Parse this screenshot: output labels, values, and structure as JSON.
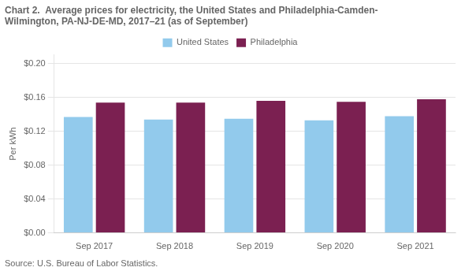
{
  "chart_data": {
    "type": "bar",
    "title": "Chart 2.  Average prices for electricity, the United States and Philadelphia-Camden-\nWilmington, PA-NJ-DE-MD, 2017–21 (as of September)",
    "ylabel": "Per kWh",
    "source": "Source: U.S. Bureau of Labor Statistics.",
    "categories": [
      "Sep 2017",
      "Sep 2018",
      "Sep 2019",
      "Sep 2020",
      "Sep 2021"
    ],
    "series": [
      {
        "name": "United States",
        "color": "#92CAEC",
        "values": [
          0.1368,
          0.1338,
          0.1348,
          0.1328,
          0.1378
        ]
      },
      {
        "name": "Philadelphia",
        "color": "#7B2051",
        "values": [
          0.1538,
          0.1538,
          0.1558,
          0.1548,
          0.1578
        ]
      }
    ],
    "ylim": [
      0.0,
      0.21
    ],
    "yticks": [
      {
        "value": 0.0,
        "label": "$0.00"
      },
      {
        "value": 0.04,
        "label": "$0.04"
      },
      {
        "value": 0.08,
        "label": "$0.08"
      },
      {
        "value": 0.12,
        "label": "$0.12"
      },
      {
        "value": 0.16,
        "label": "$0.16"
      },
      {
        "value": 0.2,
        "label": "$0.20"
      }
    ],
    "grid": true,
    "legend": "top"
  }
}
